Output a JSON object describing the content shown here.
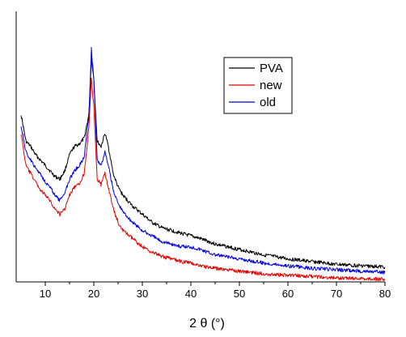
{
  "chart_data": {
    "type": "line",
    "title": "",
    "xlabel": "2 θ (°)",
    "ylabel": "",
    "xlim": [
      4,
      80
    ],
    "ylim": [
      0,
      1
    ],
    "x_ticks": [
      10,
      20,
      30,
      40,
      50,
      60,
      70,
      80
    ],
    "grid": false,
    "legend_position": "top-right",
    "series": [
      {
        "name": "PVA",
        "color": "#000000",
        "points": [
          [
            5,
            0.62
          ],
          [
            6,
            0.52
          ],
          [
            7,
            0.5
          ],
          [
            8,
            0.47
          ],
          [
            9,
            0.45
          ],
          [
            10,
            0.43
          ],
          [
            11,
            0.41
          ],
          [
            12,
            0.39
          ],
          [
            13,
            0.38
          ],
          [
            14,
            0.41
          ],
          [
            15,
            0.47
          ],
          [
            16,
            0.5
          ],
          [
            17,
            0.51
          ],
          [
            18,
            0.53
          ],
          [
            19,
            0.62
          ],
          [
            19.5,
            0.83
          ],
          [
            20,
            0.75
          ],
          [
            20.7,
            0.52
          ],
          [
            21.5,
            0.5
          ],
          [
            22.3,
            0.55
          ],
          [
            23,
            0.5
          ],
          [
            24,
            0.4
          ],
          [
            25,
            0.35
          ],
          [
            26,
            0.32
          ],
          [
            28,
            0.28
          ],
          [
            30,
            0.25
          ],
          [
            32,
            0.22
          ],
          [
            34,
            0.2
          ],
          [
            36,
            0.19
          ],
          [
            38,
            0.18
          ],
          [
            40,
            0.17
          ],
          [
            42,
            0.16
          ],
          [
            45,
            0.14
          ],
          [
            50,
            0.12
          ],
          [
            55,
            0.1
          ],
          [
            60,
            0.085
          ],
          [
            65,
            0.075
          ],
          [
            70,
            0.065
          ],
          [
            75,
            0.06
          ],
          [
            80,
            0.055
          ]
        ]
      },
      {
        "name": "new",
        "color": "#e00000",
        "points": [
          [
            5,
            0.55
          ],
          [
            6,
            0.43
          ],
          [
            7,
            0.4
          ],
          [
            8,
            0.37
          ],
          [
            9,
            0.34
          ],
          [
            10,
            0.32
          ],
          [
            11,
            0.3
          ],
          [
            12,
            0.27
          ],
          [
            13,
            0.25
          ],
          [
            14,
            0.27
          ],
          [
            15,
            0.32
          ],
          [
            16,
            0.35
          ],
          [
            17,
            0.36
          ],
          [
            18,
            0.4
          ],
          [
            19,
            0.57
          ],
          [
            19.5,
            0.75
          ],
          [
            20,
            0.65
          ],
          [
            20.7,
            0.38
          ],
          [
            21.5,
            0.36
          ],
          [
            22.3,
            0.4
          ],
          [
            23,
            0.35
          ],
          [
            24,
            0.27
          ],
          [
            25,
            0.22
          ],
          [
            26,
            0.19
          ],
          [
            28,
            0.16
          ],
          [
            30,
            0.13
          ],
          [
            32,
            0.11
          ],
          [
            34,
            0.095
          ],
          [
            36,
            0.085
          ],
          [
            38,
            0.075
          ],
          [
            40,
            0.07
          ],
          [
            42,
            0.06
          ],
          [
            45,
            0.05
          ],
          [
            50,
            0.04
          ],
          [
            55,
            0.03
          ],
          [
            60,
            0.025
          ],
          [
            65,
            0.02
          ],
          [
            70,
            0.015
          ],
          [
            75,
            0.012
          ],
          [
            80,
            0.01
          ]
        ]
      },
      {
        "name": "old",
        "color": "#0000e0",
        "points": [
          [
            5,
            0.58
          ],
          [
            6,
            0.48
          ],
          [
            7,
            0.45
          ],
          [
            8,
            0.42
          ],
          [
            9,
            0.4
          ],
          [
            10,
            0.37
          ],
          [
            11,
            0.35
          ],
          [
            12,
            0.32
          ],
          [
            13,
            0.3
          ],
          [
            14,
            0.33
          ],
          [
            15,
            0.38
          ],
          [
            16,
            0.41
          ],
          [
            17,
            0.43
          ],
          [
            18,
            0.46
          ],
          [
            19,
            0.62
          ],
          [
            19.5,
            0.86
          ],
          [
            20,
            0.75
          ],
          [
            20.7,
            0.45
          ],
          [
            21.5,
            0.43
          ],
          [
            22.3,
            0.48
          ],
          [
            23,
            0.43
          ],
          [
            24,
            0.34
          ],
          [
            25,
            0.29
          ],
          [
            26,
            0.26
          ],
          [
            28,
            0.22
          ],
          [
            30,
            0.19
          ],
          [
            32,
            0.17
          ],
          [
            34,
            0.15
          ],
          [
            36,
            0.14
          ],
          [
            38,
            0.13
          ],
          [
            40,
            0.13
          ],
          [
            42,
            0.12
          ],
          [
            45,
            0.1
          ],
          [
            50,
            0.085
          ],
          [
            55,
            0.07
          ],
          [
            60,
            0.06
          ],
          [
            65,
            0.05
          ],
          [
            70,
            0.045
          ],
          [
            75,
            0.04
          ],
          [
            80,
            0.035
          ]
        ]
      }
    ]
  }
}
